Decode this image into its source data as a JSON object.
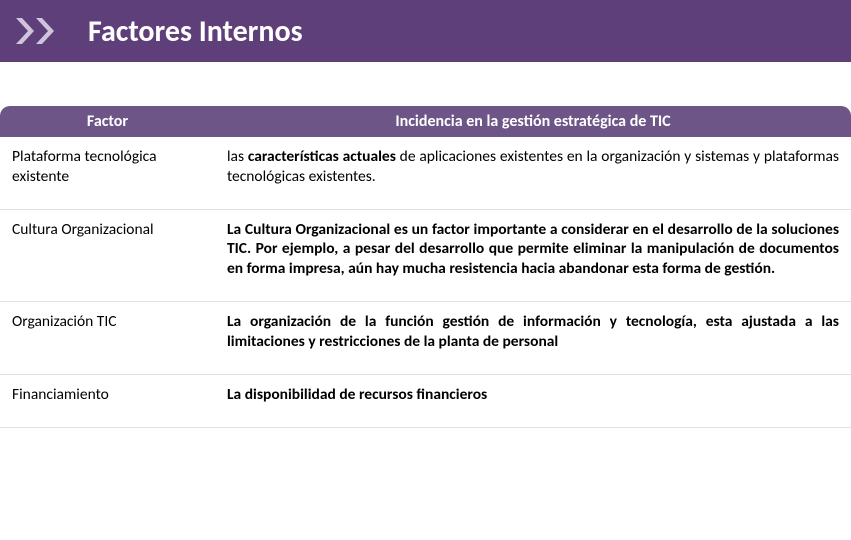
{
  "header": {
    "title": "Factores Internos",
    "background_color": "#5e3f7a",
    "title_color": "#ffffff",
    "chevron_color": "#cfc4db"
  },
  "table": {
    "header_bg": "#6e5588",
    "header_color": "#ffffff",
    "row_border_color": "#e3dce9",
    "columns": [
      {
        "label": "Factor"
      },
      {
        "label": "Incidencia en la  gestión estratégica de TIC"
      }
    ],
    "rows": [
      {
        "factor": "Plataforma tecnológica existente",
        "desc_html": "las <b>características actuales</b> de aplicaciones existentes en la organización y sistemas y plataformas tecnológicas  existentes.",
        "bold_all": false
      },
      {
        "factor": "Cultura Organizacional",
        "desc_html": "La Cultura Organizacional es un factor importante a considerar en el desarrollo de la soluciones TIC. Por ejemplo, a pesar del desarrollo que permite eliminar la manipulación de documentos en forma impresa, aún hay mucha resistencia hacia abandonar esta forma de gestión.",
        "bold_all": true
      },
      {
        "factor": "Organización TIC",
        "desc_html": "La organización de la función  gestión de información y tecnología, esta ajustada a las limitaciones  y restricciones de la planta de personal",
        "bold_all": true
      },
      {
        "factor": "Financiamiento",
        "desc_html": "La disponibilidad de recursos financieros",
        "bold_all": true
      }
    ]
  }
}
